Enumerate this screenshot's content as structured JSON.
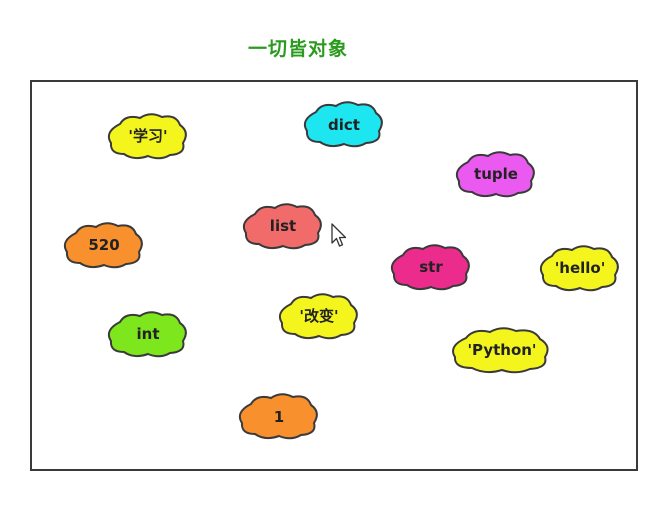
{
  "title": "一切皆对象",
  "objects": [
    {
      "label": "'学习'",
      "color": "#f5f51e"
    },
    {
      "label": "dict",
      "color": "#1ee6f0"
    },
    {
      "label": "tuple",
      "color": "#ea5af0"
    },
    {
      "label": "list",
      "color": "#f26b6b"
    },
    {
      "label": "520",
      "color": "#f7902d"
    },
    {
      "label": "str",
      "color": "#ec2c8c"
    },
    {
      "label": "'hello'",
      "color": "#f5f51e"
    },
    {
      "label": "int",
      "color": "#7ee61c"
    },
    {
      "label": "'改变'",
      "color": "#f5f51e"
    },
    {
      "label": "'Python'",
      "color": "#f5f51e"
    },
    {
      "label": "1",
      "color": "#f7902d"
    }
  ],
  "icons": {
    "cursor": "mouse-pointer-icon"
  }
}
